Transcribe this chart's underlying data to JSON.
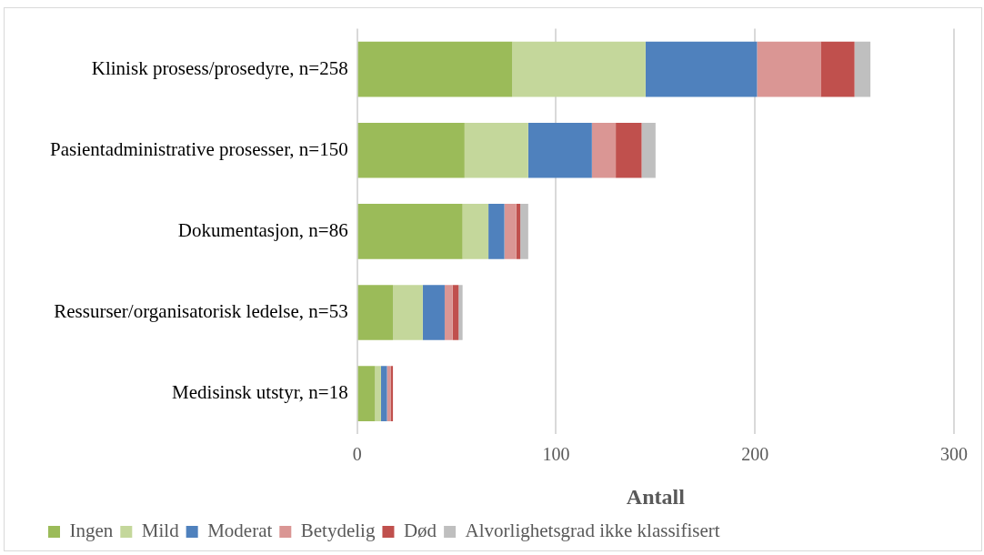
{
  "chart_data": {
    "type": "bar",
    "orientation": "horizontal",
    "stacked": true,
    "xlabel": "Antall",
    "categories": [
      "Klinisk prosess/prosedyre, n=258",
      "Pasientadministrative prosesser, n=150",
      "Dokumentasjon, n=86",
      "Ressurser/organisatorisk ledelse, n=53",
      "Medisinsk utstyr, n=18"
    ],
    "series": [
      {
        "name": "Ingen",
        "color": "#9bbb59",
        "values": [
          78,
          54,
          53,
          18,
          9
        ]
      },
      {
        "name": "Mild",
        "color": "#c4d79b",
        "values": [
          67,
          32,
          13,
          15,
          3
        ]
      },
      {
        "name": "Moderat",
        "color": "#4f81bd",
        "values": [
          56,
          32,
          8,
          11,
          3
        ]
      },
      {
        "name": "Betydelig",
        "color": "#da9694",
        "values": [
          32,
          12,
          6,
          4,
          2
        ]
      },
      {
        "name": "Død",
        "color": "#c0504d",
        "values": [
          17,
          13,
          2,
          3,
          1
        ]
      },
      {
        "name": "Alvorlighetsgrad ikke klassifisert",
        "color": "#bfbfbf",
        "values": [
          8,
          7,
          4,
          2,
          0
        ]
      }
    ],
    "xlim": [
      0,
      300
    ],
    "xticks": [
      0,
      100,
      200,
      300
    ],
    "grid": "x",
    "legend": "bottom"
  }
}
